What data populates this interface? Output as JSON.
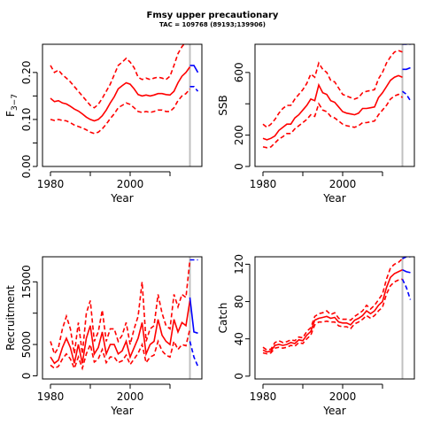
{
  "title": "Fmsy upper precautionary",
  "subtitle": "TAC = 109768 (89193;139906)",
  "colors": {
    "history": "#ff0000",
    "projection": "#0000ff",
    "marker": "#c0c0c0",
    "axis": "#000000"
  },
  "chart_data": [
    {
      "id": "fbar",
      "type": "line",
      "xlabel": "Year",
      "ylabel_main": "F",
      "ylabel_sub": "3−7",
      "xlim": [
        1978,
        2018
      ],
      "ylim": [
        0.0,
        0.26
      ],
      "xticks": [
        1980,
        2000
      ],
      "yticks": [
        0.0,
        0.05,
        0.1,
        0.15,
        0.2
      ],
      "ytick_labels": [
        "0.00",
        "",
        "0.10",
        "",
        "0.20"
      ],
      "marker_year": 2015,
      "x": [
        1980,
        1981,
        1982,
        1983,
        1984,
        1985,
        1986,
        1987,
        1988,
        1989,
        1990,
        1991,
        1992,
        1993,
        1994,
        1995,
        1996,
        1997,
        1998,
        1999,
        2000,
        2001,
        2002,
        2003,
        2004,
        2005,
        2006,
        2007,
        2008,
        2009,
        2010,
        2011,
        2012,
        2013,
        2014,
        2015
      ],
      "median": [
        0.145,
        0.138,
        0.14,
        0.135,
        0.133,
        0.128,
        0.122,
        0.118,
        0.112,
        0.105,
        0.1,
        0.097,
        0.1,
        0.108,
        0.12,
        0.135,
        0.148,
        0.165,
        0.172,
        0.178,
        0.175,
        0.165,
        0.153,
        0.15,
        0.152,
        0.15,
        0.152,
        0.155,
        0.155,
        0.153,
        0.152,
        0.16,
        0.178,
        0.192,
        0.2,
        0.212
      ],
      "upper": [
        0.215,
        0.2,
        0.205,
        0.195,
        0.188,
        0.18,
        0.17,
        0.16,
        0.15,
        0.14,
        0.13,
        0.125,
        0.132,
        0.145,
        0.16,
        0.175,
        0.195,
        0.215,
        0.222,
        0.23,
        0.222,
        0.21,
        0.19,
        0.185,
        0.188,
        0.185,
        0.188,
        0.19,
        0.188,
        0.185,
        0.192,
        0.215,
        0.24,
        0.255,
        0.265,
        0.275
      ],
      "lower": [
        0.1,
        0.098,
        0.1,
        0.098,
        0.097,
        0.093,
        0.088,
        0.085,
        0.082,
        0.078,
        0.073,
        0.07,
        0.073,
        0.08,
        0.09,
        0.102,
        0.112,
        0.125,
        0.13,
        0.135,
        0.132,
        0.125,
        0.117,
        0.115,
        0.117,
        0.115,
        0.117,
        0.12,
        0.12,
        0.117,
        0.117,
        0.125,
        0.14,
        0.15,
        0.155,
        0.165
      ],
      "proj_x": [
        2015,
        2016,
        2017
      ],
      "proj_median": [
        0.215,
        0.215,
        0.2
      ],
      "proj_upper": [
        0.275,
        0.275,
        0.26
      ],
      "proj_lower": [
        0.17,
        0.17,
        0.16
      ]
    },
    {
      "id": "ssb",
      "type": "line",
      "xlabel": "Year",
      "ylabel_main": "SSB",
      "xlim": [
        1978,
        2018
      ],
      "ylim": [
        0,
        780
      ],
      "xticks": [
        1980,
        2000
      ],
      "yticks": [
        0,
        200,
        400,
        600
      ],
      "ytick_labels": [
        "0",
        "200",
        "",
        "600"
      ],
      "marker_year": 2015,
      "x": [
        1980,
        1981,
        1982,
        1983,
        1984,
        1985,
        1986,
        1987,
        1988,
        1989,
        1990,
        1991,
        1992,
        1993,
        1994,
        1995,
        1996,
        1997,
        1998,
        1999,
        2000,
        2001,
        2002,
        2003,
        2004,
        2005,
        2006,
        2007,
        2008,
        2009,
        2010,
        2011,
        2012,
        2013,
        2014,
        2015
      ],
      "median": [
        180,
        170,
        180,
        195,
        230,
        250,
        270,
        270,
        310,
        330,
        360,
        390,
        430,
        420,
        520,
        470,
        460,
        420,
        410,
        380,
        350,
        340,
        335,
        330,
        340,
        370,
        370,
        375,
        380,
        440,
        470,
        510,
        550,
        570,
        580,
        570
      ],
      "upper": [
        270,
        250,
        270,
        300,
        340,
        370,
        390,
        390,
        430,
        460,
        490,
        530,
        590,
        570,
        660,
        620,
        600,
        550,
        540,
        500,
        460,
        450,
        440,
        430,
        440,
        470,
        480,
        485,
        490,
        560,
        600,
        660,
        700,
        730,
        740,
        730
      ],
      "lower": [
        125,
        120,
        125,
        150,
        175,
        190,
        210,
        210,
        240,
        260,
        280,
        300,
        330,
        320,
        400,
        360,
        350,
        320,
        310,
        290,
        270,
        260,
        255,
        250,
        260,
        280,
        280,
        285,
        290,
        330,
        360,
        390,
        430,
        450,
        460,
        440
      ],
      "proj_x": [
        2015,
        2016,
        2017
      ],
      "proj_median": [
        620,
        620,
        630
      ],
      "proj_upper": [
        780,
        780,
        780
      ],
      "proj_lower": [
        480,
        460,
        420
      ]
    },
    {
      "id": "recruitment",
      "type": "line",
      "xlabel": "Year",
      "ylabel_main": "Recruitment",
      "xlim": [
        1978,
        2018
      ],
      "ylim": [
        -500,
        19000
      ],
      "xticks": [
        1980,
        2000
      ],
      "yticks": [
        0,
        5000,
        10000,
        15000
      ],
      "ytick_labels": [
        "0",
        "5000",
        "",
        "15000"
      ],
      "marker_year": 2015,
      "x": [
        1980,
        1981,
        1982,
        1983,
        1984,
        1985,
        1986,
        1987,
        1988,
        1989,
        1990,
        1991,
        1992,
        1993,
        1994,
        1995,
        1996,
        1997,
        1998,
        1999,
        2000,
        2001,
        2002,
        2003,
        2004,
        2005,
        2006,
        2007,
        2008,
        2009,
        2010,
        2011,
        2012,
        2013,
        2014,
        2015
      ],
      "median": [
        3000,
        2000,
        2500,
        4500,
        6000,
        4500,
        2000,
        5000,
        2000,
        6000,
        8000,
        3500,
        4500,
        7000,
        3500,
        5000,
        5000,
        3500,
        4000,
        5500,
        3000,
        4500,
        6000,
        8500,
        3500,
        5000,
        5500,
        9000,
        6500,
        5500,
        5000,
        9000,
        7000,
        8500,
        8000,
        12000
      ],
      "upper": [
        5500,
        3500,
        4500,
        7500,
        9500,
        7500,
        3500,
        8500,
        3500,
        10000,
        12000,
        5500,
        7000,
        10500,
        5500,
        7500,
        7500,
        5500,
        6500,
        8500,
        5000,
        7500,
        9500,
        15000,
        5500,
        7500,
        8000,
        13000,
        10000,
        8000,
        7500,
        13000,
        11000,
        13000,
        12500,
        18500
      ],
      "lower": [
        1700,
        1200,
        1500,
        2700,
        3500,
        2700,
        1200,
        3000,
        1200,
        3500,
        5000,
        2200,
        2700,
        4200,
        2100,
        3000,
        3000,
        2100,
        2400,
        3300,
        1800,
        2700,
        3600,
        5000,
        2100,
        3000,
        3300,
        5500,
        4000,
        3300,
        3000,
        5500,
        4200,
        5000,
        4800,
        7500
      ],
      "proj_x": [
        2015,
        2016,
        2017
      ],
      "proj_median": [
        12500,
        7000,
        6800
      ],
      "proj_upper": [
        18500,
        18500,
        18500
      ],
      "proj_lower": [
        5500,
        3000,
        1500
      ]
    },
    {
      "id": "catch",
      "type": "line",
      "xlabel": "Year",
      "ylabel_main": "Catch",
      "xlim": [
        1978,
        2018
      ],
      "ylim": [
        -3,
        128
      ],
      "xticks": [
        1980,
        2000
      ],
      "yticks": [
        0,
        40,
        80,
        120
      ],
      "ytick_labels": [
        "0",
        "40",
        "80",
        "120"
      ],
      "marker_year": 2015,
      "x": [
        1980,
        1981,
        1982,
        1983,
        1984,
        1985,
        1986,
        1987,
        1988,
        1989,
        1990,
        1991,
        1992,
        1993,
        1994,
        1995,
        1996,
        1997,
        1998,
        1999,
        2000,
        2001,
        2002,
        2003,
        2004,
        2005,
        2006,
        2007,
        2008,
        2009,
        2010,
        2011,
        2012,
        2013,
        2014,
        2015
      ],
      "median": [
        28,
        26,
        27,
        33,
        34,
        33,
        34,
        36,
        35,
        39,
        38,
        44,
        48,
        60,
        62,
        63,
        64,
        62,
        63,
        58,
        57,
        57,
        55,
        60,
        62,
        65,
        70,
        67,
        70,
        76,
        80,
        95,
        106,
        110,
        112,
        114
      ],
      "upper": [
        31,
        28,
        29,
        36,
        38,
        36,
        37,
        39,
        38,
        42,
        41,
        48,
        52,
        64,
        67,
        68,
        70,
        66,
        68,
        62,
        61,
        61,
        60,
        64,
        67,
        70,
        76,
        72,
        76,
        82,
        88,
        104,
        116,
        120,
        122,
        126
      ],
      "lower": [
        25,
        24,
        25,
        30,
        31,
        30,
        31,
        33,
        32,
        36,
        35,
        40,
        44,
        55,
        58,
        58,
        59,
        58,
        58,
        54,
        53,
        53,
        51,
        56,
        58,
        61,
        65,
        62,
        65,
        70,
        74,
        88,
        97,
        101,
        103,
        104
      ],
      "proj_x": [
        2015,
        2016,
        2017
      ],
      "proj_median": [
        114,
        112,
        111
      ],
      "proj_upper": [
        126,
        128,
        128
      ],
      "proj_lower": [
        104,
        95,
        82
      ]
    }
  ]
}
